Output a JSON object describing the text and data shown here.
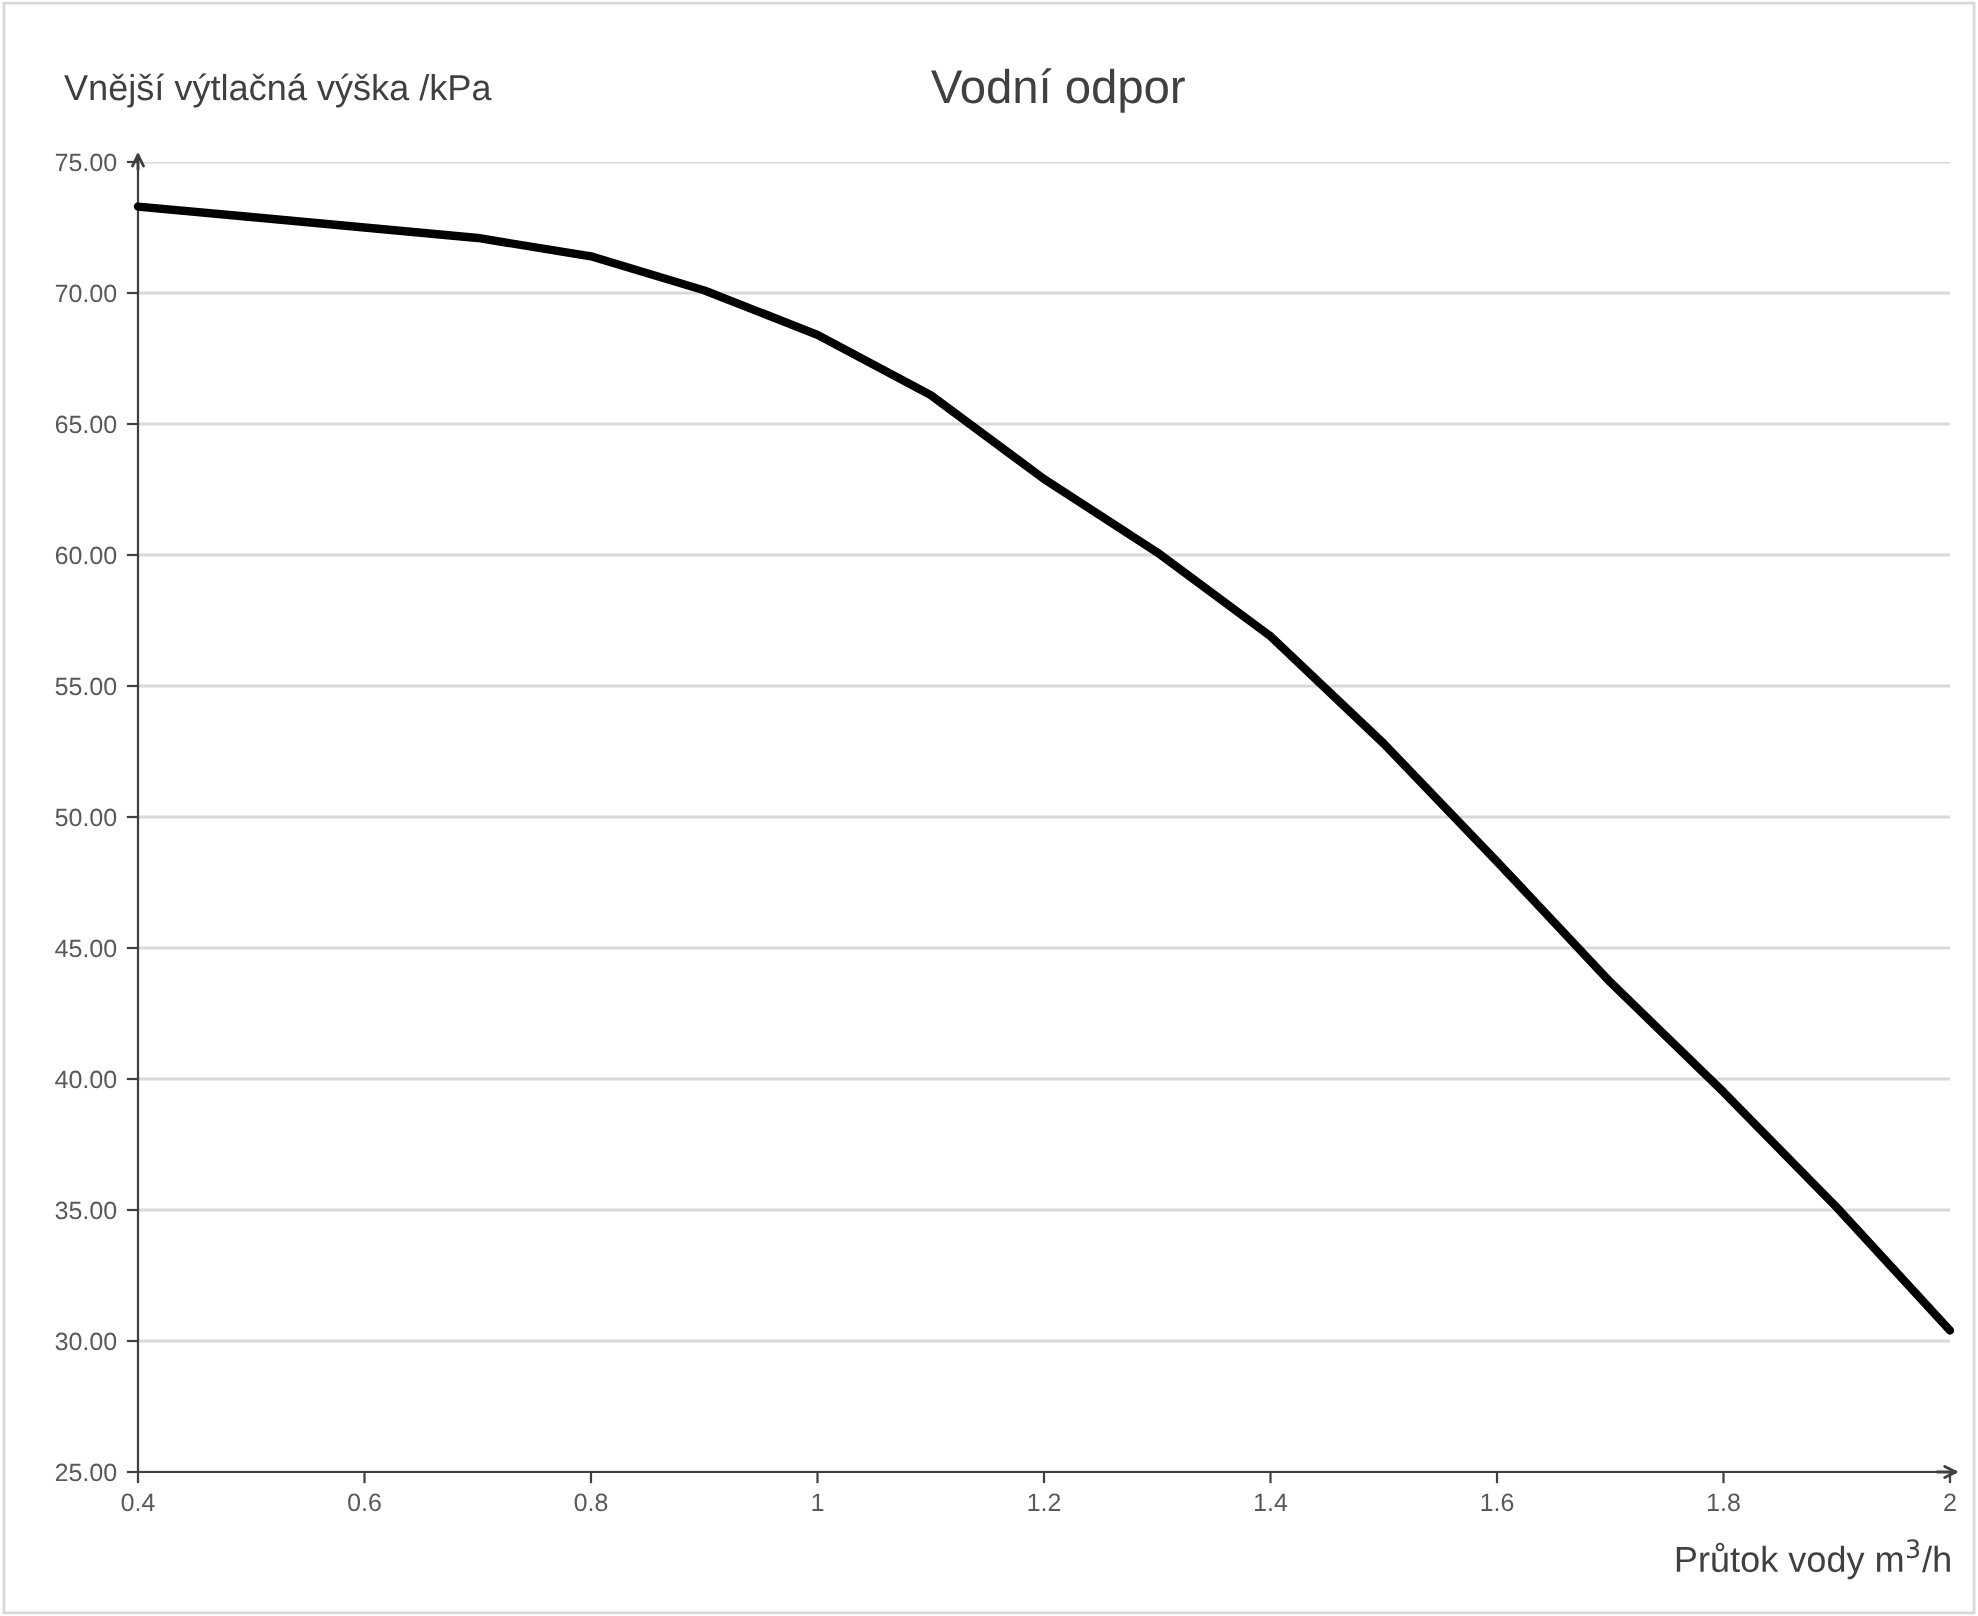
{
  "chart_data": {
    "type": "line",
    "title": "Vodní odpor",
    "ylabel": "Vnější výtlačná výška /kPa",
    "xlabel": "Průtok vody m$^{3}$/h",
    "x": [
      0.4,
      0.5,
      0.6,
      0.7,
      0.8,
      0.9,
      1.0,
      1.1,
      1.2,
      1.3,
      1.4,
      1.5,
      1.6,
      1.7,
      1.8,
      1.9,
      2.0
    ],
    "series": [
      {
        "color": "#000000",
        "values": [
          73.3,
          72.9,
          72.5,
          72.1,
          71.4,
          70.1,
          68.4,
          66.1,
          62.9,
          60.1,
          56.9,
          52.8,
          48.3,
          43.7,
          39.5,
          35.1,
          30.4
        ]
      }
    ],
    "xlim": [
      0.4,
      2
    ],
    "xticks": [
      0.4,
      0.6,
      0.8,
      1,
      1.2,
      1.4,
      1.6,
      1.8,
      2
    ],
    "ylim": [
      25,
      75
    ],
    "yticks": [
      {
        "value": 25,
        "label": "25.00"
      },
      {
        "value": 30,
        "label": "30.00"
      },
      {
        "value": 35,
        "label": "35.00"
      },
      {
        "value": 40,
        "label": "40.00"
      },
      {
        "value": 45,
        "label": "45.00"
      },
      {
        "value": 50,
        "label": "50.00"
      },
      {
        "value": 55,
        "label": "55.00"
      },
      {
        "value": 60,
        "label": "60.00"
      },
      {
        "value": 65,
        "label": "65.00"
      },
      {
        "value": 70,
        "label": "70.00"
      },
      {
        "value": 75,
        "label": "75.00"
      }
    ],
    "grid": "y",
    "marker": "none",
    "line_style": "solid"
  }
}
